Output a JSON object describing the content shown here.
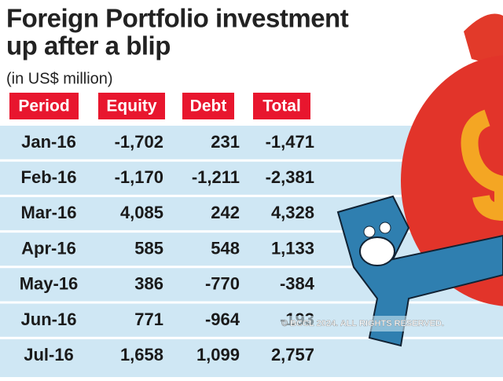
{
  "header": {
    "title_line1": "Foreign Portfolio investment",
    "title_line2": "up after a blip",
    "subtitle": "(in US$ million)"
  },
  "table": {
    "columns": [
      "Period",
      "Equity",
      "Debt",
      "Total"
    ],
    "rows": [
      [
        "Jan-16",
        "-1,702",
        "231",
        "-1,471"
      ],
      [
        "Feb-16",
        "-1,170",
        "-1,211",
        "-2,381"
      ],
      [
        "Mar-16",
        "4,085",
        "242",
        "4,328"
      ],
      [
        "Apr-16",
        "585",
        "548",
        "1,133"
      ],
      [
        "May-16",
        "386",
        "-770",
        "-384"
      ],
      [
        "Jun-16",
        "771",
        "-964",
        "-193"
      ],
      [
        "Jul-16",
        "1,658",
        "1,099",
        "2,757"
      ]
    ]
  },
  "watermark": "© BCCL 2024. ALL RIGHTS RESERVED."
}
